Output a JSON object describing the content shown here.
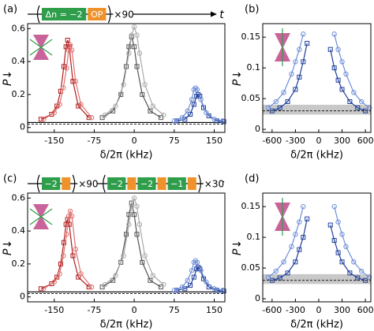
{
  "chart_data": [
    {
      "type": "scatter",
      "panel_label": "(a)",
      "x_label": "δ/2π (kHz)",
      "y_label": "P↓",
      "time_label": "t",
      "sequence": [
        {
          "boxes": [
            {
              "text": "Δn = −2",
              "color": "#2e9e4a"
            },
            {
              "text": "OP",
              "color": "#f0922b"
            }
          ],
          "repeat": "×90"
        }
      ],
      "xlim": [
        -200,
        170
      ],
      "ylim": [
        -0.03,
        0.63
      ],
      "xticks": [
        -150,
        -75,
        0,
        75,
        150
      ],
      "yticks": [
        0,
        0.2,
        0.4,
        0.6
      ],
      "ref_lines": [
        {
          "value": 0.03,
          "style": "solid"
        },
        {
          "value": 0.02,
          "style": "dashed"
        }
      ],
      "series": [
        {
          "color": "#b01c1c",
          "marker": "square",
          "x": [
            -175,
            -155,
            -145,
            -138,
            -132,
            -128,
            -125,
            -122,
            -115,
            -105,
            -85
          ],
          "values": [
            0.05,
            0.08,
            0.13,
            0.22,
            0.37,
            0.49,
            0.53,
            0.49,
            0.28,
            0.13,
            0.06
          ]
        },
        {
          "color": "#e07070",
          "marker": "circle",
          "x": [
            -170,
            -150,
            -140,
            -133,
            -127,
            -123,
            -120,
            -117,
            -110,
            -100,
            -80
          ],
          "values": [
            0.05,
            0.09,
            0.14,
            0.24,
            0.36,
            0.47,
            0.5,
            0.47,
            0.28,
            0.14,
            0.06
          ]
        },
        {
          "color": "#555555",
          "marker": "square",
          "x": [
            -60,
            -40,
            -25,
            -15,
            -10,
            -5,
            0,
            5,
            15,
            30,
            50
          ],
          "values": [
            0.06,
            0.1,
            0.2,
            0.37,
            0.49,
            0.55,
            0.49,
            0.37,
            0.2,
            0.1,
            0.06
          ]
        },
        {
          "color": "#aaaaaa",
          "marker": "circle",
          "x": [
            -55,
            -35,
            -20,
            -10,
            -5,
            0,
            5,
            10,
            20,
            35,
            55
          ],
          "values": [
            0.075,
            0.13,
            0.26,
            0.45,
            0.56,
            0.61,
            0.56,
            0.45,
            0.26,
            0.13,
            0.075
          ]
        },
        {
          "color": "#1f3f9a",
          "marker": "square",
          "x": [
            80,
            95,
            105,
            112,
            117,
            120,
            123,
            130,
            140,
            155,
            168
          ],
          "values": [
            0.04,
            0.05,
            0.08,
            0.14,
            0.19,
            0.2,
            0.19,
            0.12,
            0.07,
            0.04,
            0.035
          ]
        },
        {
          "color": "#6f8fd8",
          "marker": "circle",
          "x": [
            75,
            90,
            100,
            108,
            112,
            115,
            118,
            125,
            135,
            150,
            166
          ],
          "values": [
            0.04,
            0.06,
            0.1,
            0.17,
            0.23,
            0.24,
            0.23,
            0.17,
            0.09,
            0.05,
            0.04
          ]
        }
      ]
    },
    {
      "type": "scatter",
      "panel_label": "(b)",
      "x_label": "δ/2π (kHz)",
      "y_label": "P↓",
      "xlim": [
        -720,
        670
      ],
      "ylim": [
        -0.005,
        0.172
      ],
      "xticks": [
        -600,
        -300,
        0,
        300,
        600
      ],
      "yticks": [
        0,
        0.05,
        0.1,
        0.15
      ],
      "band": [
        0.024,
        0.04
      ],
      "ref_lines": [
        {
          "value": 0.03,
          "style": "dashed"
        }
      ],
      "series": [
        {
          "color": "#1f3f9a",
          "marker": "square",
          "x": [
            -600,
            -500,
            -400,
            -300,
            -250,
            -200,
            -150,
            0,
            150,
            200,
            250,
            300,
            400,
            500,
            600
          ],
          "values": [
            0.03,
            0.035,
            0.045,
            0.065,
            0.085,
            0.11,
            0.14,
            null,
            0.13,
            0.1,
            0.08,
            0.065,
            0.045,
            0.035,
            0.03
          ]
        },
        {
          "color": "#6f8fd8",
          "marker": "circle",
          "x": [
            -650,
            -550,
            -450,
            -350,
            -300,
            -250,
            -200,
            0,
            200,
            250,
            300,
            350,
            450,
            550,
            650
          ],
          "values": [
            0.035,
            0.045,
            0.06,
            0.09,
            0.11,
            0.13,
            0.155,
            null,
            0.155,
            0.13,
            0.11,
            0.09,
            0.06,
            0.045,
            0.035
          ]
        }
      ]
    },
    {
      "type": "scatter",
      "panel_label": "(c)",
      "x_label": "δ/2π (kHz)",
      "y_label": "P↓",
      "time_label": "t",
      "sequence": [
        {
          "boxes": [
            {
              "text": "−2",
              "color": "#2e9e4a"
            },
            {
              "color": "#f0922b"
            }
          ],
          "repeat": "×90"
        },
        {
          "boxes": [
            {
              "text": "−2",
              "color": "#2e9e4a"
            },
            {
              "color": "#f0922b"
            },
            {
              "text": "−2",
              "color": "#2e9e4a"
            },
            {
              "color": "#f0922b"
            },
            {
              "text": "−1",
              "color": "#2e9e4a"
            },
            {
              "color": "#f0922b"
            }
          ],
          "repeat": "×30"
        }
      ],
      "xlim": [
        -200,
        170
      ],
      "ylim": [
        -0.03,
        0.63
      ],
      "xticks": [
        -150,
        -75,
        0,
        75,
        150
      ],
      "yticks": [
        0,
        0.2,
        0.4,
        0.6
      ],
      "ref_lines": [
        {
          "value": 0.03,
          "style": "solid"
        },
        {
          "value": 0.02,
          "style": "dashed"
        }
      ],
      "series": [
        {
          "color": "#b01c1c",
          "marker": "square",
          "x": [
            -175,
            -155,
            -145,
            -138,
            -132,
            -128,
            -125,
            -122,
            -115,
            -105,
            -85
          ],
          "values": [
            0.05,
            0.08,
            0.12,
            0.2,
            0.33,
            0.44,
            0.47,
            0.44,
            0.25,
            0.12,
            0.06
          ]
        },
        {
          "color": "#e07070",
          "marker": "circle",
          "x": [
            -170,
            -150,
            -140,
            -133,
            -127,
            -123,
            -120,
            -117,
            -110,
            -100,
            -80
          ],
          "values": [
            0.05,
            0.09,
            0.14,
            0.25,
            0.38,
            0.49,
            0.52,
            0.49,
            0.29,
            0.14,
            0.06
          ]
        },
        {
          "color": "#555555",
          "marker": "square",
          "x": [
            -60,
            -40,
            -25,
            -15,
            -10,
            -5,
            0,
            5,
            15,
            30,
            50
          ],
          "values": [
            0.06,
            0.1,
            0.21,
            0.38,
            0.5,
            0.57,
            0.5,
            0.38,
            0.21,
            0.1,
            0.06
          ]
        },
        {
          "color": "#aaaaaa",
          "marker": "circle",
          "x": [
            -55,
            -35,
            -20,
            -10,
            -5,
            0,
            5,
            10,
            20,
            35,
            55
          ],
          "values": [
            0.075,
            0.13,
            0.25,
            0.44,
            0.55,
            0.6,
            0.55,
            0.44,
            0.25,
            0.13,
            0.075
          ]
        },
        {
          "color": "#1f3f9a",
          "marker": "square",
          "x": [
            80,
            95,
            105,
            112,
            117,
            120,
            123,
            130,
            140,
            155,
            168
          ],
          "values": [
            0.04,
            0.05,
            0.07,
            0.12,
            0.17,
            0.18,
            0.17,
            0.11,
            0.06,
            0.04,
            0.035
          ]
        },
        {
          "color": "#6f8fd8",
          "marker": "circle",
          "x": [
            75,
            90,
            100,
            108,
            112,
            115,
            118,
            125,
            135,
            150,
            166
          ],
          "values": [
            0.04,
            0.06,
            0.1,
            0.16,
            0.21,
            0.22,
            0.21,
            0.16,
            0.09,
            0.05,
            0.04
          ]
        }
      ]
    },
    {
      "type": "scatter",
      "panel_label": "(d)",
      "x_label": "δ/2π (kHz)",
      "y_label": "P↓",
      "xlim": [
        -720,
        670
      ],
      "ylim": [
        -0.005,
        0.172
      ],
      "xticks": [
        -600,
        -300,
        0,
        300,
        600
      ],
      "yticks": [
        0,
        0.05,
        0.1,
        0.15
      ],
      "band": [
        0.024,
        0.04
      ],
      "ref_lines": [
        {
          "value": 0.03,
          "style": "dashed"
        }
      ],
      "series": [
        {
          "color": "#1f3f9a",
          "marker": "square",
          "x": [
            -600,
            -500,
            -400,
            -300,
            -250,
            -200,
            -150,
            0,
            150,
            200,
            250,
            300,
            400,
            500,
            600
          ],
          "values": [
            0.03,
            0.034,
            0.042,
            0.06,
            0.08,
            0.1,
            0.13,
            null,
            0.12,
            0.095,
            0.075,
            0.06,
            0.042,
            0.034,
            0.03
          ]
        },
        {
          "color": "#6f8fd8",
          "marker": "circle",
          "x": [
            -650,
            -550,
            -450,
            -350,
            -300,
            -250,
            -200,
            0,
            200,
            250,
            300,
            350,
            450,
            550,
            650
          ],
          "values": [
            0.035,
            0.045,
            0.06,
            0.085,
            0.105,
            0.125,
            0.15,
            null,
            0.15,
            0.125,
            0.105,
            0.085,
            0.06,
            0.045,
            0.035
          ]
        }
      ]
    }
  ]
}
